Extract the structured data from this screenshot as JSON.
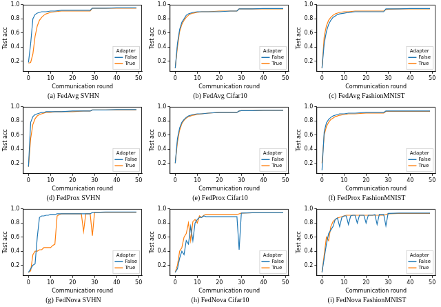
{
  "chart_data": [
    {
      "type": "line",
      "title": "(a) FedAvg SVHN",
      "x_label": "Communication round",
      "y_label": "Test acc",
      "legend_title": "Adapter",
      "legend": "lower right",
      "grid": false,
      "xlim": [
        -2.5,
        51.5
      ],
      "ylim": [
        0.05,
        1.0
      ],
      "xticks": [
        0,
        10,
        20,
        30,
        40,
        50
      ],
      "yticks": [
        0.2,
        0.4,
        0.6,
        0.8,
        {
          "value": 1,
          "label": "1.0"
        }
      ],
      "x": [
        0,
        1,
        2,
        3,
        4,
        5,
        6,
        7,
        8,
        10,
        12,
        15,
        20,
        25,
        28,
        29,
        30,
        35,
        40,
        45,
        49
      ],
      "series": [
        {
          "name": "False",
          "color": "#1f77b4",
          "values": [
            0.18,
            0.45,
            0.8,
            0.86,
            0.88,
            0.89,
            0.9,
            0.9,
            0.9,
            0.91,
            0.91,
            0.92,
            0.92,
            0.92,
            0.92,
            0.95,
            0.95,
            0.95,
            0.955,
            0.955,
            0.955
          ]
        },
        {
          "name": "True",
          "color": "#ff7f0e",
          "values": [
            0.17,
            0.18,
            0.3,
            0.55,
            0.7,
            0.78,
            0.82,
            0.85,
            0.87,
            0.89,
            0.9,
            0.91,
            0.91,
            0.91,
            0.91,
            0.95,
            0.95,
            0.95,
            0.95,
            0.95,
            0.95
          ]
        }
      ]
    },
    {
      "type": "line",
      "title": "(b) FedAvg Cifar10",
      "x_label": "Communication round",
      "y_label": "Test acc",
      "legend_title": "Adapter",
      "legend": "lower right",
      "grid": false,
      "xlim": [
        -2.5,
        51.5
      ],
      "ylim": [
        0.05,
        1.0
      ],
      "xticks": [
        0,
        10,
        20,
        30,
        40,
        50
      ],
      "yticks": [
        0.2,
        0.4,
        0.6,
        0.8,
        {
          "value": 1,
          "label": "1.0"
        }
      ],
      "x": [
        0,
        1,
        2,
        3,
        4,
        5,
        6,
        7,
        8,
        10,
        12,
        15,
        20,
        25,
        28,
        29,
        30,
        35,
        40,
        45,
        49
      ],
      "series": [
        {
          "name": "False",
          "color": "#1f77b4",
          "values": [
            0.1,
            0.45,
            0.65,
            0.75,
            0.8,
            0.85,
            0.87,
            0.88,
            0.89,
            0.9,
            0.9,
            0.9,
            0.9,
            0.91,
            0.91,
            0.94,
            0.94,
            0.94,
            0.945,
            0.945,
            0.945
          ]
        },
        {
          "name": "True",
          "color": "#ff7f0e",
          "values": [
            0.1,
            0.4,
            0.62,
            0.72,
            0.78,
            0.82,
            0.85,
            0.87,
            0.88,
            0.89,
            0.9,
            0.9,
            0.91,
            0.91,
            0.91,
            0.94,
            0.94,
            0.94,
            0.94,
            0.94,
            0.94
          ]
        }
      ]
    },
    {
      "type": "line",
      "title": "(c) FedAvg FashionMNIST",
      "x_label": "Communication round",
      "y_label": "Test acc",
      "legend_title": "Adapter",
      "legend": "lower right",
      "grid": false,
      "xlim": [
        -2.5,
        51.5
      ],
      "ylim": [
        0.05,
        1.0
      ],
      "xticks": [
        0,
        10,
        20,
        30,
        40,
        50
      ],
      "yticks": [
        0.2,
        0.4,
        0.6,
        0.8,
        {
          "value": 1,
          "label": "1.0"
        }
      ],
      "x": [
        0,
        1,
        2,
        3,
        4,
        5,
        6,
        7,
        8,
        10,
        12,
        15,
        20,
        25,
        28,
        29,
        30,
        35,
        40,
        45,
        49
      ],
      "series": [
        {
          "name": "False",
          "color": "#1f77b4",
          "values": [
            0.1,
            0.45,
            0.62,
            0.72,
            0.78,
            0.82,
            0.84,
            0.86,
            0.87,
            0.88,
            0.89,
            0.9,
            0.9,
            0.9,
            0.9,
            0.94,
            0.94,
            0.94,
            0.945,
            0.945,
            0.945
          ]
        },
        {
          "name": "True",
          "color": "#ff7f0e",
          "values": [
            0.1,
            0.55,
            0.7,
            0.78,
            0.82,
            0.85,
            0.87,
            0.88,
            0.89,
            0.9,
            0.9,
            0.91,
            0.91,
            0.91,
            0.91,
            0.93,
            0.935,
            0.94,
            0.94,
            0.94,
            0.94
          ]
        }
      ]
    },
    {
      "type": "line",
      "title": "(d) FedProx SVHN",
      "x_label": "Communication round",
      "y_label": "Test acc",
      "legend_title": "Adapter",
      "legend": "lower right",
      "grid": false,
      "xlim": [
        -2.5,
        51.5
      ],
      "ylim": [
        0.05,
        1.0
      ],
      "xticks": [
        0,
        10,
        20,
        30,
        40,
        50
      ],
      "yticks": [
        0.2,
        0.4,
        0.6,
        0.8,
        {
          "value": 1,
          "label": "1.0"
        }
      ],
      "x": [
        0,
        1,
        2,
        3,
        4,
        5,
        6,
        7,
        8,
        10,
        12,
        15,
        20,
        25,
        28,
        29,
        30,
        35,
        40,
        45,
        49
      ],
      "series": [
        {
          "name": "False",
          "color": "#1f77b4",
          "values": [
            0.15,
            0.78,
            0.86,
            0.89,
            0.9,
            0.91,
            0.92,
            0.92,
            0.93,
            0.93,
            0.93,
            0.93,
            0.94,
            0.94,
            0.94,
            0.955,
            0.955,
            0.955,
            0.96,
            0.96,
            0.96
          ]
        },
        {
          "name": "True",
          "color": "#ff7f0e",
          "values": [
            0.15,
            0.55,
            0.75,
            0.83,
            0.87,
            0.89,
            0.9,
            0.91,
            0.92,
            0.92,
            0.93,
            0.93,
            0.93,
            0.94,
            0.94,
            0.955,
            0.955,
            0.955,
            0.955,
            0.955,
            0.955
          ]
        }
      ]
    },
    {
      "type": "line",
      "title": "(e) FedProx Cifar10",
      "x_label": "Communication round",
      "y_label": "Test acc",
      "legend_title": "Adapter",
      "legend": "lower right",
      "grid": false,
      "xlim": [
        -2.5,
        51.5
      ],
      "ylim": [
        0.05,
        1.0
      ],
      "xticks": [
        0,
        10,
        20,
        30,
        40,
        50
      ],
      "yticks": [
        0.2,
        0.4,
        0.6,
        0.8,
        {
          "value": 1,
          "label": "1.0"
        }
      ],
      "x": [
        0,
        1,
        2,
        3,
        4,
        5,
        6,
        7,
        8,
        10,
        12,
        15,
        20,
        25,
        28,
        29,
        30,
        35,
        40,
        45,
        49
      ],
      "series": [
        {
          "name": "False",
          "color": "#1f77b4",
          "values": [
            0.2,
            0.55,
            0.7,
            0.78,
            0.82,
            0.85,
            0.87,
            0.88,
            0.89,
            0.9,
            0.9,
            0.91,
            0.92,
            0.92,
            0.92,
            0.94,
            0.945,
            0.945,
            0.95,
            0.95,
            0.95
          ]
        },
        {
          "name": "True",
          "color": "#ff7f0e",
          "values": [
            0.2,
            0.5,
            0.67,
            0.76,
            0.81,
            0.84,
            0.86,
            0.87,
            0.88,
            0.89,
            0.9,
            0.91,
            0.92,
            0.92,
            0.92,
            0.94,
            0.945,
            0.945,
            0.95,
            0.95,
            0.95
          ]
        }
      ]
    },
    {
      "type": "line",
      "title": "(f) FedProx FashionMNIST",
      "x_label": "Communication round",
      "y_label": "Test acc",
      "legend_title": "Adapter",
      "legend": "lower right",
      "grid": false,
      "xlim": [
        -2.5,
        51.5
      ],
      "ylim": [
        0.05,
        1.0
      ],
      "xticks": [
        0,
        10,
        20,
        30,
        40,
        50
      ],
      "yticks": [
        0.2,
        0.4,
        0.6,
        0.8,
        {
          "value": 1,
          "label": "1.0"
        }
      ],
      "x": [
        0,
        1,
        2,
        3,
        4,
        5,
        6,
        7,
        8,
        10,
        12,
        15,
        20,
        25,
        28,
        29,
        30,
        35,
        40,
        45,
        49
      ],
      "series": [
        {
          "name": "False",
          "color": "#1f77b4",
          "values": [
            0.1,
            0.65,
            0.77,
            0.82,
            0.85,
            0.87,
            0.88,
            0.89,
            0.9,
            0.9,
            0.91,
            0.91,
            0.92,
            0.92,
            0.92,
            0.94,
            0.94,
            0.94,
            0.94,
            0.94,
            0.94
          ]
        },
        {
          "name": "True",
          "color": "#ff7f0e",
          "values": [
            0.2,
            0.6,
            0.72,
            0.78,
            0.82,
            0.84,
            0.86,
            0.87,
            0.88,
            0.89,
            0.9,
            0.9,
            0.91,
            0.91,
            0.91,
            0.935,
            0.935,
            0.935,
            0.935,
            0.935,
            0.935
          ]
        }
      ]
    },
    {
      "type": "line",
      "title": "(g) FedNova SVHN",
      "x_label": "Communication round",
      "y_label": "Test acc",
      "legend_title": "Adapter",
      "legend": "lower right",
      "grid": false,
      "xlim": [
        -2.5,
        51.5
      ],
      "ylim": [
        0.05,
        1.0
      ],
      "xticks": [
        0,
        10,
        20,
        30,
        40,
        50
      ],
      "yticks": [
        0.2,
        0.4,
        0.6,
        0.8,
        {
          "value": 1,
          "label": "1.0"
        }
      ],
      "x": [
        0,
        1,
        2,
        3,
        4,
        5,
        6,
        7,
        8,
        9,
        10,
        11,
        12,
        13,
        14,
        15,
        16,
        17,
        18,
        19,
        20,
        21,
        22,
        23,
        24,
        25,
        26,
        27,
        28,
        29,
        30,
        35,
        40,
        45,
        49
      ],
      "series": [
        {
          "name": "False",
          "color": "#1f77b4",
          "values": [
            0.1,
            0.15,
            0.2,
            0.22,
            0.6,
            0.88,
            0.9,
            0.9,
            0.91,
            0.91,
            0.92,
            0.92,
            0.92,
            0.93,
            0.93,
            0.93,
            0.93,
            0.93,
            0.93,
            0.93,
            0.93,
            0.93,
            0.93,
            0.93,
            0.93,
            0.93,
            0.93,
            0.93,
            0.93,
            0.95,
            0.95,
            0.955,
            0.955,
            0.955,
            0.955
          ]
        },
        {
          "name": "True",
          "color": "#ff7f0e",
          "values": [
            0.1,
            0.12,
            0.35,
            0.4,
            0.4,
            0.42,
            0.42,
            0.45,
            0.45,
            0.45,
            0.45,
            0.48,
            0.5,
            0.9,
            0.92,
            0.93,
            0.93,
            0.93,
            0.93,
            0.93,
            0.93,
            0.93,
            0.93,
            0.93,
            0.93,
            0.68,
            0.93,
            0.93,
            0.93,
            0.62,
            0.95,
            0.95,
            0.95,
            0.95,
            0.95
          ]
        }
      ]
    },
    {
      "type": "line",
      "title": "(h) FedNova Cifar10",
      "x_label": "Communication round",
      "y_label": "Test acc",
      "legend_title": "Adapter",
      "legend": "lower right",
      "grid": false,
      "xlim": [
        -2.5,
        51.5
      ],
      "ylim": [
        0.05,
        1.0
      ],
      "xticks": [
        0,
        10,
        20,
        30,
        40,
        50
      ],
      "yticks": [
        0.2,
        0.4,
        0.6,
        0.8,
        {
          "value": 1,
          "label": "1.0"
        }
      ],
      "x": [
        0,
        1,
        2,
        3,
        4,
        5,
        6,
        7,
        8,
        9,
        10,
        11,
        12,
        13,
        14,
        15,
        16,
        17,
        18,
        19,
        20,
        21,
        22,
        23,
        24,
        25,
        26,
        27,
        28,
        29,
        30,
        35,
        40,
        45,
        49
      ],
      "series": [
        {
          "name": "False",
          "color": "#1f77b4",
          "values": [
            0.1,
            0.15,
            0.3,
            0.4,
            0.35,
            0.55,
            0.5,
            0.75,
            0.55,
            0.8,
            0.85,
            0.88,
            0.88,
            0.9,
            0.89,
            0.89,
            0.89,
            0.89,
            0.89,
            0.89,
            0.89,
            0.89,
            0.89,
            0.89,
            0.89,
            0.89,
            0.89,
            0.89,
            0.89,
            0.42,
            0.94,
            0.945,
            0.945,
            0.945,
            0.945
          ]
        },
        {
          "name": "True",
          "color": "#ff7f0e",
          "values": [
            0.1,
            0.2,
            0.4,
            0.45,
            0.6,
            0.65,
            0.8,
            0.55,
            0.82,
            0.85,
            0.8,
            0.9,
            0.88,
            0.91,
            0.92,
            0.92,
            0.92,
            0.92,
            0.92,
            0.92,
            0.92,
            0.92,
            0.92,
            0.92,
            0.92,
            0.92,
            0.92,
            0.92,
            0.92,
            0.93,
            0.94,
            0.945,
            0.945,
            0.945,
            0.945
          ]
        }
      ]
    },
    {
      "type": "line",
      "title": "(i) FedNova FashionMNIST",
      "x_label": "Communication round",
      "y_label": "Test acc",
      "legend_title": "Adapter",
      "legend": "lower right",
      "grid": false,
      "xlim": [
        -2.5,
        51.5
      ],
      "ylim": [
        0.05,
        1.0
      ],
      "xticks": [
        0,
        10,
        20,
        30,
        40,
        50
      ],
      "yticks": [
        0.2,
        0.4,
        0.6,
        0.8,
        {
          "value": 1,
          "label": "1.0"
        }
      ],
      "x": [
        0,
        1,
        2,
        3,
        4,
        5,
        6,
        7,
        8,
        9,
        10,
        11,
        12,
        13,
        14,
        15,
        16,
        17,
        18,
        19,
        20,
        21,
        22,
        23,
        24,
        25,
        26,
        27,
        28,
        29,
        30,
        35,
        40,
        45,
        49
      ],
      "series": [
        {
          "name": "False",
          "color": "#1f77b4",
          "values": [
            0.1,
            0.3,
            0.5,
            0.65,
            0.7,
            0.75,
            0.85,
            0.87,
            0.75,
            0.88,
            0.9,
            0.9,
            0.78,
            0.9,
            0.91,
            0.91,
            0.8,
            0.91,
            0.91,
            0.91,
            0.8,
            0.91,
            0.91,
            0.91,
            0.92,
            0.78,
            0.92,
            0.92,
            0.92,
            0.76,
            0.935,
            0.94,
            0.94,
            0.94,
            0.94
          ]
        },
        {
          "name": "True",
          "color": "#ff7f0e",
          "values": [
            0.1,
            0.35,
            0.6,
            0.55,
            0.75,
            0.82,
            0.85,
            0.87,
            0.88,
            0.89,
            0.9,
            0.91,
            0.91,
            0.91,
            0.91,
            0.91,
            0.91,
            0.91,
            0.91,
            0.91,
            0.91,
            0.91,
            0.91,
            0.91,
            0.91,
            0.91,
            0.91,
            0.91,
            0.91,
            0.92,
            0.93,
            0.935,
            0.935,
            0.935,
            0.935
          ]
        }
      ]
    }
  ]
}
